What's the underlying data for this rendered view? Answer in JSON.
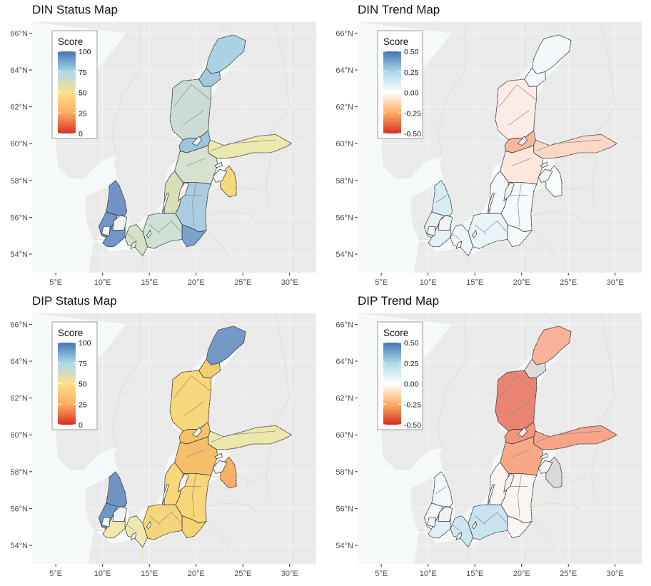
{
  "colors": {
    "plot_bg": "#ebeef0",
    "sea": "#f5f9fa",
    "land": "#eaeaea",
    "border": "#e8dccb",
    "region_line": "#8a8a8a",
    "coast": "#333333"
  },
  "axes": {
    "x_ticks": [
      "5°E",
      "10°E",
      "15°E",
      "20°E",
      "25°E",
      "30°E"
    ],
    "x_values": [
      5,
      10,
      15,
      20,
      25,
      30
    ],
    "y_ticks": [
      "66°N",
      "64°N",
      "62°N",
      "60°N",
      "58°N",
      "56°N",
      "54°N"
    ],
    "y_values": [
      66,
      64,
      62,
      60,
      58,
      56,
      54
    ],
    "xlim": [
      2.5,
      33.5
    ],
    "ylim": [
      53,
      66.6
    ]
  },
  "panels": [
    {
      "title": "DIN Status Map",
      "legend": {
        "title": "Score",
        "labels": [
          "100",
          "75",
          "50",
          "25",
          "0"
        ],
        "gradient": [
          "#4575b4",
          "#abd9e9",
          "#fee090",
          "#fdae61",
          "#d73027"
        ]
      },
      "regions": {
        "bothnian_bay": "#a9d2e3",
        "quark": "#a5c9dc",
        "bothnian_sea": "#cbdcd5",
        "aland": "#9dc5dc",
        "gulf_finland": "#ebe9ad",
        "riga": "#f5d97b",
        "northern_baltic": "#d6e2cf",
        "western_gotland": "#d8dfb7",
        "eastern_gotland": "#abcde2",
        "gdansk": "#7aa2cc",
        "bornholm": "#cde1d6",
        "arkona": "#d7e0c4",
        "kattegat": "#6f94c5",
        "belts": "#7096c8",
        "kiel": "#7096c8"
      }
    },
    {
      "title": "DIN Trend Map",
      "legend": {
        "title": "Score",
        "labels": [
          "0.50",
          "0.25",
          "0.00",
          "-0.25",
          "-0.50"
        ],
        "gradient": [
          "#4575b4",
          "#abd9e9",
          "#ffffff",
          "#fdae61",
          "#d73027"
        ]
      },
      "regions": {
        "bothnian_bay": "#f3f9fb",
        "quark": "#f3f9fb",
        "bothnian_sea": "#fcece5",
        "aland": "#f7b79a",
        "gulf_finland": "#fbd8c6",
        "riga": "#f8fcfd",
        "northern_baltic": "#fde6dc",
        "western_gotland": "#f3f9fb",
        "eastern_gotland": "#f5fafc",
        "gdansk": "#f7fbfc",
        "bornholm": "#e9f4f8",
        "arkona": "#eef6f9",
        "kattegat": "#d7ebf2",
        "belts": "#e3f1f6",
        "kiel": "#e3f1f6"
      }
    },
    {
      "title": "DIP Status Map",
      "legend": {
        "title": "Score",
        "labels": [
          "100",
          "75",
          "50",
          "25",
          "0"
        ],
        "gradient": [
          "#4575b4",
          "#abd9e9",
          "#fee090",
          "#fdae61",
          "#d73027"
        ]
      },
      "regions": {
        "bothnian_bay": "#7499c7",
        "quark": "#f2cd72",
        "bothnian_sea": "#f6d87b",
        "aland": "#f4c36a",
        "gulf_finland": "#ece7aa",
        "riga": "#f9b064",
        "northern_baltic": "#f6be6b",
        "western_gotland": "#f9d677",
        "eastern_gotland": "#f8d679",
        "gdansk": "#f7d378",
        "bornholm": "#f6d57a",
        "arkona": "#eee9b1",
        "kattegat": "#6f94c5",
        "belts": "#7096c8",
        "kiel": "#f1e8ae"
      }
    },
    {
      "title": "DIP Trend Map",
      "legend": {
        "title": "Score",
        "labels": [
          "0.50",
          "0.25",
          "0.00",
          "-0.25",
          "-0.50"
        ],
        "gradient": [
          "#4575b4",
          "#abd9e9",
          "#ffffff",
          "#fdae61",
          "#d73027"
        ]
      },
      "regions": {
        "bothnian_bay": "#f9b19a",
        "quark": "#dcdcdc",
        "bothnian_sea": "#e98472",
        "aland": "#f3967d",
        "gulf_finland": "#f7a488",
        "riga": "#d9d9d9",
        "northern_baltic": "#f9a886",
        "western_gotland": "#fbf5f1",
        "eastern_gotland": "#fbf5f2",
        "gdansk": "#fbf5f3",
        "bornholm": "#c9e4ee",
        "arkona": "#cde6ef",
        "kattegat": "#f2f8fa",
        "belts": "#f2f8fa",
        "kiel": "#dfeff5"
      }
    }
  ]
}
